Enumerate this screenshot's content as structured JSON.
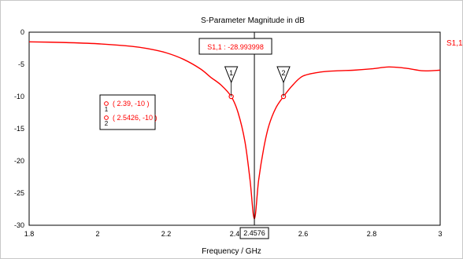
{
  "chart_data": {
    "type": "line",
    "title": "S-Parameter Magnitude in dB",
    "xlabel": "Frequency / GHz",
    "ylabel": "",
    "xlim": [
      1.8,
      3.0
    ],
    "ylim": [
      -30,
      0
    ],
    "x_ticks": [
      1.8,
      2,
      2.2,
      2.4,
      2.6,
      2.8,
      3
    ],
    "x_tick_labels": [
      "1.8",
      "2",
      "2.2",
      "2.4",
      "2.6",
      "2.8",
      "3"
    ],
    "y_ticks": [
      0,
      -5,
      -10,
      -15,
      -20,
      -25,
      -30
    ],
    "y_tick_labels": [
      "0",
      "-5",
      "-10",
      "-15",
      "-20",
      "-25",
      "-30"
    ],
    "grid": true,
    "legend_position": "top-right",
    "series": [
      {
        "name": "S1,1",
        "color": "#ff0000",
        "x": [
          1.8,
          1.9,
          2.0,
          2.1,
          2.15,
          2.2,
          2.25,
          2.3,
          2.33,
          2.36,
          2.39,
          2.41,
          2.43,
          2.445,
          2.4576,
          2.47,
          2.485,
          2.5,
          2.52,
          2.5426,
          2.57,
          2.6,
          2.65,
          2.7,
          2.75,
          2.8,
          2.85,
          2.9,
          2.95,
          3.0
        ],
        "y": [
          -1.5,
          -1.6,
          -1.8,
          -2.2,
          -2.6,
          -3.2,
          -4.2,
          -5.7,
          -7.0,
          -8.2,
          -10,
          -12.5,
          -17,
          -23,
          -29.0,
          -23,
          -18,
          -14.5,
          -11.8,
          -10,
          -8.2,
          -6.8,
          -6.2,
          -6.0,
          -5.9,
          -5.7,
          -5.4,
          -5.6,
          -6.0,
          -5.9
        ]
      }
    ],
    "markers": [
      {
        "id": "1",
        "x": 2.39,
        "y": -10,
        "label": "( 2.39, -10 )"
      },
      {
        "id": "2",
        "x": 2.5426,
        "y": -10,
        "label": "( 2.5426, -10 )"
      }
    ],
    "minimum_marker": {
      "x": 2.4576,
      "y": -28.993998,
      "label": "S1,1 : -28.993998",
      "x_label": "2.4576"
    }
  },
  "colors": {
    "curve": "#ff0000",
    "grid": "#c8c8c8",
    "axis": "#000000",
    "text": "#000000"
  }
}
